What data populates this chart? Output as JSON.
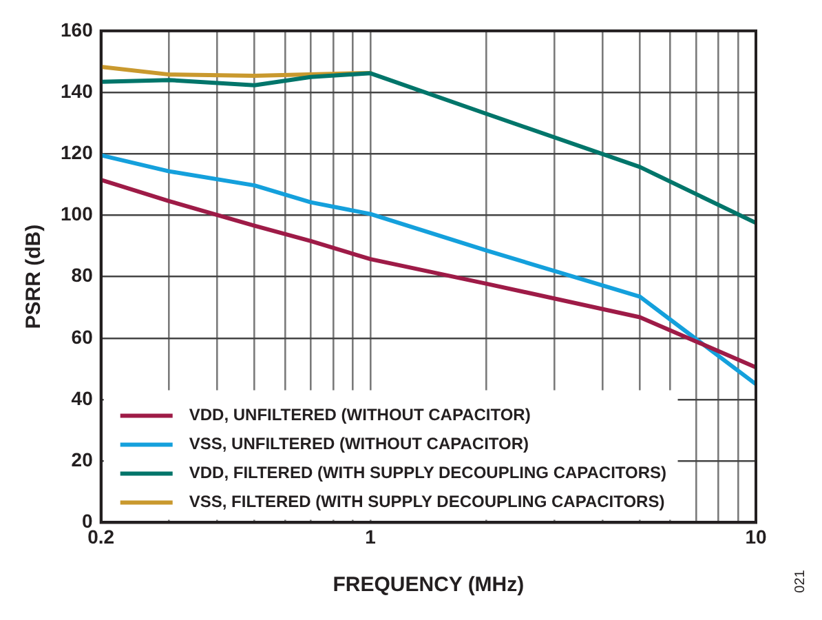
{
  "chart_data": {
    "type": "line",
    "xlabel": "FREQUENCY (MHz)",
    "ylabel": "PSRR (dB)",
    "log": "x",
    "grid": true,
    "legend": "bottom left",
    "marker": "none",
    "line_style": "solid",
    "xlim": [
      0.2,
      10
    ],
    "xticks": [
      0.2,
      {
        "value": 0.3,
        "label": null
      },
      {
        "value": 0.4,
        "label": null
      },
      {
        "value": 0.5,
        "label": null
      },
      {
        "value": 0.6,
        "label": null
      },
      {
        "value": 0.7,
        "label": null
      },
      {
        "value": 0.8,
        "label": null
      },
      {
        "value": 0.9,
        "label": null
      },
      1,
      {
        "value": 2,
        "label": null
      },
      {
        "value": 3,
        "label": null
      },
      {
        "value": 4,
        "label": null
      },
      {
        "value": 5,
        "label": null
      },
      {
        "value": 6,
        "label": null
      },
      {
        "value": 7,
        "label": null
      },
      {
        "value": 8,
        "label": null
      },
      {
        "value": 9,
        "label": null
      },
      10
    ],
    "ylim": [
      0,
      160
    ],
    "yticks": [
      0,
      20,
      40,
      60,
      80,
      100,
      120,
      140,
      160
    ],
    "annotations": [
      "021"
    ],
    "series": [
      {
        "name": "VDD, UNFILTERED (WITHOUT CAPACITOR)",
        "color": "#9e1b47",
        "x": [
          0.2,
          0.3,
          0.5,
          0.7,
          1,
          2,
          5,
          10
        ],
        "values": [
          111.5,
          104.6,
          96.6,
          91.6,
          85.7,
          77.7,
          66.8,
          50.5
        ]
      },
      {
        "name": "VSS, UNFILTERED (WITHOUT CAPACITOR)",
        "color": "#14a0dc",
        "x": [
          0.2,
          0.3,
          0.5,
          0.7,
          1,
          2,
          5,
          10
        ],
        "values": [
          119.5,
          114.3,
          109.7,
          104.2,
          100.4,
          88.5,
          73.5,
          45
        ]
      },
      {
        "name": "VDD, FILTERED (WITH SUPPLY DECOUPLING CAPACITORS)",
        "color": "#00756a",
        "x": [
          0.2,
          0.3,
          0.5,
          0.7,
          1,
          2,
          5,
          10
        ],
        "values": [
          143.4,
          144,
          142.3,
          145,
          146.2,
          133,
          115.7,
          97.5
        ]
      },
      {
        "name": "VSS, FILTERED (WITH SUPPLY DECOUPLING CAPACITORS)",
        "color": "#c9992e",
        "x": [
          0.2,
          0.3,
          0.5,
          1
        ],
        "values": [
          148.3,
          145.8,
          145.4,
          146.3
        ]
      }
    ]
  }
}
